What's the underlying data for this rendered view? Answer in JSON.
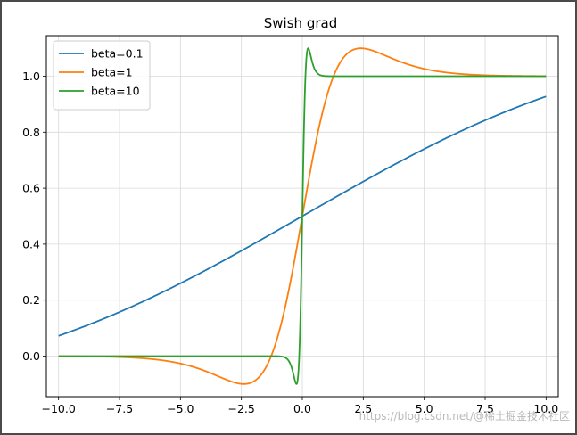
{
  "chart_data": {
    "type": "line",
    "title": "Swish grad",
    "xlabel": "",
    "ylabel": "",
    "xlim": [
      -10.5,
      10.5
    ],
    "ylim": [
      -0.145,
      1.145
    ],
    "x_ticks": [
      -10.0,
      -7.5,
      -5.0,
      -2.5,
      0.0,
      2.5,
      5.0,
      7.5,
      10.0
    ],
    "x_tick_labels": [
      "−10.0",
      "−7.5",
      "−5.0",
      "−2.5",
      "0.0",
      "2.5",
      "5.0",
      "7.5",
      "10.0"
    ],
    "y_ticks": [
      0.0,
      0.2,
      0.4,
      0.6,
      0.8,
      1.0
    ],
    "y_tick_labels": [
      "0.0",
      "0.2",
      "0.4",
      "0.6",
      "0.8",
      "1.0"
    ],
    "grid": true,
    "legend_position": "top-left",
    "x_range": [
      -10,
      10
    ],
    "series": [
      {
        "name": "beta=0.1",
        "beta": 0.1,
        "color": "#1f77b4"
      },
      {
        "name": "beta=1",
        "beta": 1,
        "color": "#ff7f0e"
      },
      {
        "name": "beta=10",
        "beta": 10,
        "color": "#2ca02c"
      }
    ]
  },
  "watermark": "https://blog.csdn.net/@稀土掘金技术社区"
}
